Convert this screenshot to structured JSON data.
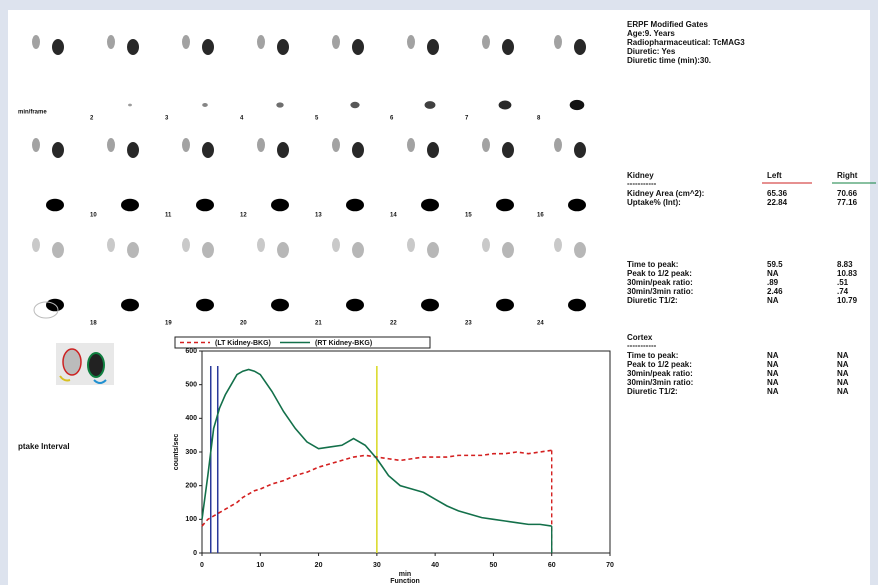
{
  "header": {
    "lines": [
      "ERPF Modified Gates",
      "Age:9. Years",
      "Radiopharmaceutical: TcMAG3",
      "Diuretic: Yes",
      "Diuretic time (min):30."
    ]
  },
  "frames": {
    "unit_label": "min/frame",
    "rows": [
      [
        "2",
        "3",
        "4",
        "5",
        "6",
        "7",
        "8"
      ],
      [
        "10",
        "11",
        "12",
        "13",
        "14",
        "15",
        "16"
      ],
      [
        "18",
        "19",
        "20",
        "21",
        "22",
        "23",
        "24"
      ]
    ]
  },
  "uptake_label": "ptake Interval",
  "kidney": {
    "title": "Kidney",
    "left": "Left",
    "right": "Right",
    "rule": "-----------",
    "rows": [
      {
        "label": "Kidney Area (cm^2):",
        "left": "65.36",
        "right": "70.66"
      },
      {
        "label": "Uptake% (Int):",
        "left": "22.84",
        "right": "77.16"
      }
    ]
  },
  "timing": {
    "rows": [
      {
        "label": "Time to peak:",
        "left": "59.5",
        "right": "8.83"
      },
      {
        "label": "Peak to 1/2 peak:",
        "left": "NA",
        "right": "10.83"
      },
      {
        "label": "30min/peak ratio:",
        "left": ".89",
        "right": ".51"
      },
      {
        "label": "30min/3min ratio:",
        "left": "2.46",
        "right": ".74"
      },
      {
        "label": "Diuretic T1/2:",
        "left": "NA",
        "right": "10.79"
      }
    ]
  },
  "cortex": {
    "title": "Cortex",
    "rule": "-----------",
    "rows": [
      {
        "label": "Time to peak:",
        "left": "NA",
        "right": "NA"
      },
      {
        "label": "Peak to 1/2 peak:",
        "left": "NA",
        "right": "NA"
      },
      {
        "label": "30min/peak ratio:",
        "left": "NA",
        "right": "NA"
      },
      {
        "label": "30min/3min ratio:",
        "left": "NA",
        "right": "NA"
      },
      {
        "label": "Diuretic T1/2:",
        "left": "NA",
        "right": "NA"
      }
    ]
  },
  "chart_data": {
    "type": "line",
    "x_label": "min",
    "x_sublabel": "Function",
    "y_label": "counts/sec",
    "xlim": [
      0,
      70
    ],
    "ylim": [
      0,
      600
    ],
    "xticks": [
      0,
      10,
      20,
      30,
      40,
      50,
      60,
      70
    ],
    "yticks": [
      0,
      100,
      200,
      300,
      400,
      500,
      600
    ],
    "x": [
      0,
      1,
      2,
      3,
      4,
      5,
      6,
      7,
      8,
      9,
      10,
      12,
      14,
      16,
      18,
      20,
      22,
      24,
      26,
      28,
      30,
      32,
      34,
      36,
      38,
      40,
      42,
      44,
      46,
      48,
      50,
      52,
      54,
      56,
      58,
      60
    ],
    "series": [
      {
        "name": "(LT Kidney-BKG)",
        "color": "#d42020",
        "dashed": true,
        "values": [
          80,
          100,
          110,
          120,
          130,
          140,
          150,
          165,
          175,
          185,
          190,
          205,
          215,
          230,
          240,
          255,
          265,
          275,
          285,
          290,
          285,
          280,
          275,
          280,
          285,
          285,
          285,
          290,
          290,
          290,
          295,
          295,
          300,
          295,
          300,
          305
        ]
      },
      {
        "name": "(RT Kidney-BKG)",
        "color": "#13704a",
        "dashed": false,
        "values": [
          100,
          230,
          370,
          430,
          470,
          500,
          530,
          540,
          545,
          540,
          530,
          480,
          420,
          370,
          330,
          310,
          315,
          320,
          340,
          320,
          280,
          230,
          200,
          190,
          180,
          160,
          140,
          125,
          115,
          105,
          100,
          95,
          90,
          85,
          85,
          80
        ]
      }
    ],
    "markers": [
      {
        "x": 1.5,
        "color": "#2a3a9a"
      },
      {
        "x": 2.7,
        "color": "#2a3a9a"
      },
      {
        "x": 30,
        "color": "#d8d820"
      }
    ]
  }
}
